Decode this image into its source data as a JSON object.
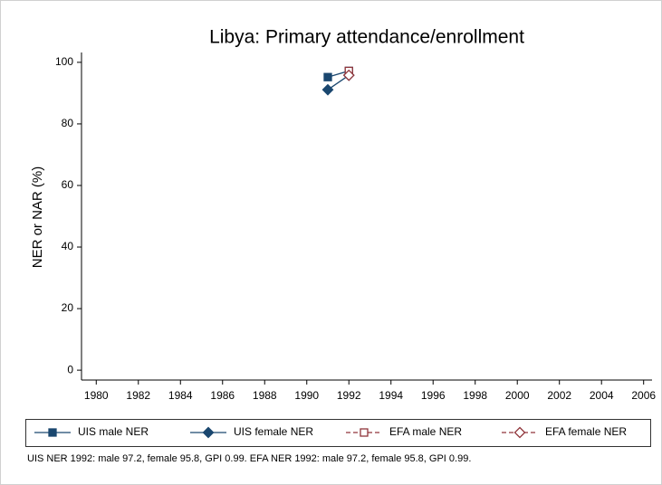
{
  "chart_data": {
    "type": "line",
    "title": "Libya: Primary attendance/enrollment",
    "y_label": "NER or NAR (%)",
    "note": "UIS NER 1992: male 97.2, female 95.8, GPI 0.99. EFA NER 1992: male 97.2, female 95.8, GPI 0.99.",
    "x": [
      1991,
      1992
    ],
    "series": [
      {
        "name": "UIS male NER",
        "color": "#1a476f",
        "marker": "square",
        "filled": true,
        "dashed": false,
        "values": [
          95.2,
          97.2
        ]
      },
      {
        "name": "UIS female NER",
        "color": "#1a476f",
        "marker": "diamond",
        "filled": true,
        "dashed": false,
        "values": [
          91.1,
          95.8
        ]
      },
      {
        "name": "EFA male NER",
        "color": "#90353b",
        "marker": "square",
        "filled": false,
        "dashed": true,
        "values": [
          null,
          97.2
        ]
      },
      {
        "name": "EFA female NER",
        "color": "#90353b",
        "marker": "diamond",
        "filled": false,
        "dashed": true,
        "values": [
          null,
          95.8
        ]
      }
    ],
    "xlim": [
      1979.3,
      2006.4
    ],
    "xticks": [
      1980,
      1982,
      1984,
      1986,
      1988,
      1990,
      1992,
      1994,
      1996,
      1998,
      2000,
      2002,
      2004,
      2006
    ],
    "ylim": [
      -3.2,
      103.2
    ],
    "yticks": [
      0,
      20,
      40,
      60,
      80,
      100
    ],
    "grid": false
  }
}
